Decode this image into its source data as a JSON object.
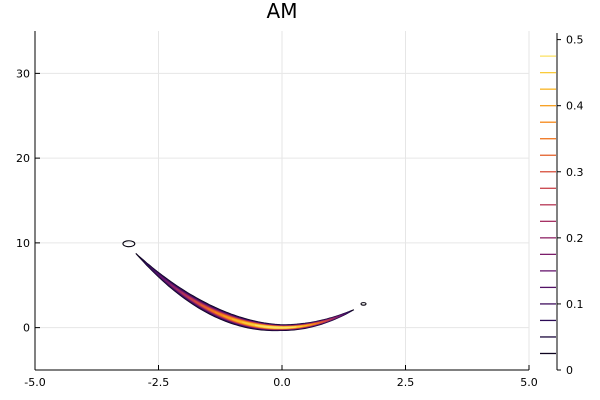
{
  "chart_data": {
    "type": "contour",
    "title": "AM",
    "xlabel": "",
    "ylabel": "",
    "xlim": [
      -5,
      5
    ],
    "ylim": [
      -5,
      35
    ],
    "x_ticks": [
      "-5.0",
      "-2.5",
      "0.0",
      "2.5",
      "5.0"
    ],
    "x_tick_values": [
      -5,
      -2.5,
      0,
      2.5,
      5
    ],
    "y_ticks": [
      "0",
      "10",
      "20",
      "30"
    ],
    "y_tick_values": [
      0,
      10,
      20,
      30
    ],
    "grid": true,
    "colorbar": {
      "range": [
        0,
        0.51
      ],
      "ticks": [
        "0",
        "0.1",
        "0.2",
        "0.3",
        "0.4",
        "0.5"
      ],
      "tick_values": [
        0,
        0.1,
        0.2,
        0.3,
        0.4,
        0.5
      ],
      "levels": [
        0.025,
        0.05,
        0.075,
        0.1,
        0.125,
        0.15,
        0.175,
        0.2,
        0.225,
        0.25,
        0.275,
        0.3,
        0.325,
        0.35,
        0.375,
        0.4,
        0.425,
        0.45,
        0.475
      ],
      "colormap": "inferno"
    },
    "density_model": {
      "curve": "y = x^2",
      "spread": 0.45,
      "peak": 0.5
    },
    "outlier_contours": [
      {
        "x": -3.1,
        "y": 9.9,
        "rx": 0.12,
        "ry": 0.35
      },
      {
        "x": 1.65,
        "y": 2.8,
        "rx": 0.05,
        "ry": 0.15
      }
    ],
    "colors": {
      "low": "#000004",
      "mid": "#b53679",
      "high": "#fcffa4"
    }
  }
}
